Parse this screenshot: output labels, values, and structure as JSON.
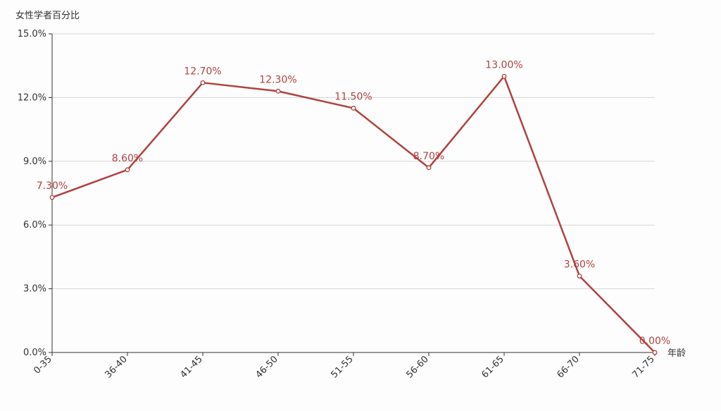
{
  "chart_data": {
    "type": "line",
    "ylabel": "女性学者百分比",
    "xlabel": "年龄",
    "categories": [
      "0-35",
      "36-40",
      "41-45",
      "46-50",
      "51-55",
      "56-60",
      "61-65",
      "66-70",
      "71-75"
    ],
    "series": [
      {
        "values": [
          7.3,
          8.6,
          12.7,
          12.3,
          11.5,
          8.7,
          13.0,
          3.6,
          0.0
        ],
        "labels": [
          "7.30%",
          "8.60%",
          "12.70%",
          "12.30%",
          "11.50%",
          "8.70%",
          "13.00%",
          "3.60%",
          "0.00%"
        ]
      }
    ],
    "yticks": [
      0,
      3,
      6,
      9,
      12,
      15
    ],
    "ytick_labels": [
      "0.0%",
      "3.0%",
      "6.0%",
      "9.0%",
      "12.0%",
      "15.0%"
    ],
    "ylim": [
      0,
      15
    ],
    "grid": true,
    "line_color": "#b0423f",
    "axis_color": "#333333",
    "grid_color": "#d6d6d6"
  }
}
